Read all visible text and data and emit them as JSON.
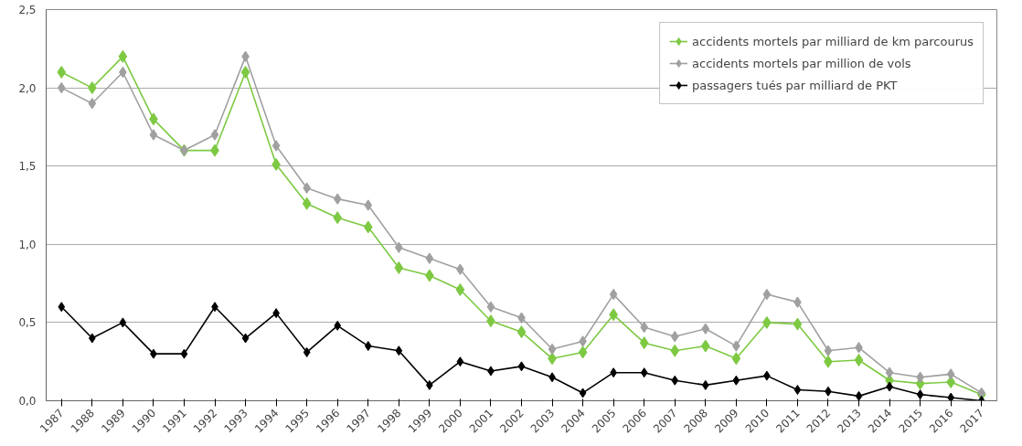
{
  "chart_data": {
    "type": "line",
    "categories": [
      "1987",
      "1988",
      "1989",
      "1990",
      "1991",
      "1992",
      "1993",
      "1994",
      "1995",
      "1996",
      "1997",
      "1998",
      "1999",
      "2000",
      "2001",
      "2002",
      "2003",
      "2004",
      "2005",
      "2006",
      "2007",
      "2008",
      "2009",
      "2010",
      "2011",
      "2012",
      "2013",
      "2014",
      "2015",
      "2016",
      "2017"
    ],
    "series": [
      {
        "name": "accidents mortels par milliard de km parcourus",
        "color": "#7dc942",
        "values": [
          2.1,
          2.0,
          2.2,
          1.8,
          1.6,
          1.6,
          2.1,
          1.51,
          1.26,
          1.17,
          1.11,
          0.85,
          0.8,
          0.71,
          0.51,
          0.44,
          0.27,
          0.31,
          0.55,
          0.37,
          0.32,
          0.35,
          0.27,
          0.5,
          0.49,
          0.25,
          0.26,
          0.13,
          0.11,
          0.12,
          0.04
        ]
      },
      {
        "name": "accidents mortels par million de vols",
        "color": "#a0a0a0",
        "values": [
          2.0,
          1.9,
          2.1,
          1.7,
          1.6,
          1.7,
          2.2,
          1.63,
          1.36,
          1.29,
          1.25,
          0.98,
          0.91,
          0.84,
          0.6,
          0.53,
          0.33,
          0.38,
          0.68,
          0.47,
          0.41,
          0.46,
          0.35,
          0.68,
          0.63,
          0.32,
          0.34,
          0.18,
          0.15,
          0.17,
          0.05
        ]
      },
      {
        "name": "passagers tués par milliard de PKT",
        "color": "#000000",
        "values": [
          0.6,
          0.4,
          0.5,
          0.3,
          0.3,
          0.6,
          0.4,
          0.56,
          0.31,
          0.48,
          0.35,
          0.32,
          0.1,
          0.25,
          0.19,
          0.22,
          0.15,
          0.05,
          0.18,
          0.18,
          0.13,
          0.1,
          0.13,
          0.16,
          0.07,
          0.06,
          0.03,
          0.09,
          0.04,
          0.02,
          0.0
        ]
      }
    ],
    "ylim": [
      0,
      2.5
    ],
    "yticks": [
      {
        "value": 0,
        "label": "0,0"
      },
      {
        "value": 0.5,
        "label": "0,5"
      },
      {
        "value": 1,
        "label": "1,0"
      },
      {
        "value": 1.5,
        "label": "1,5"
      },
      {
        "value": 2,
        "label": "2,0"
      },
      {
        "value": 2.5,
        "label": "2,5"
      }
    ],
    "grid": "y",
    "legend": "top right",
    "marker": "diamond",
    "line_style": "solid"
  }
}
